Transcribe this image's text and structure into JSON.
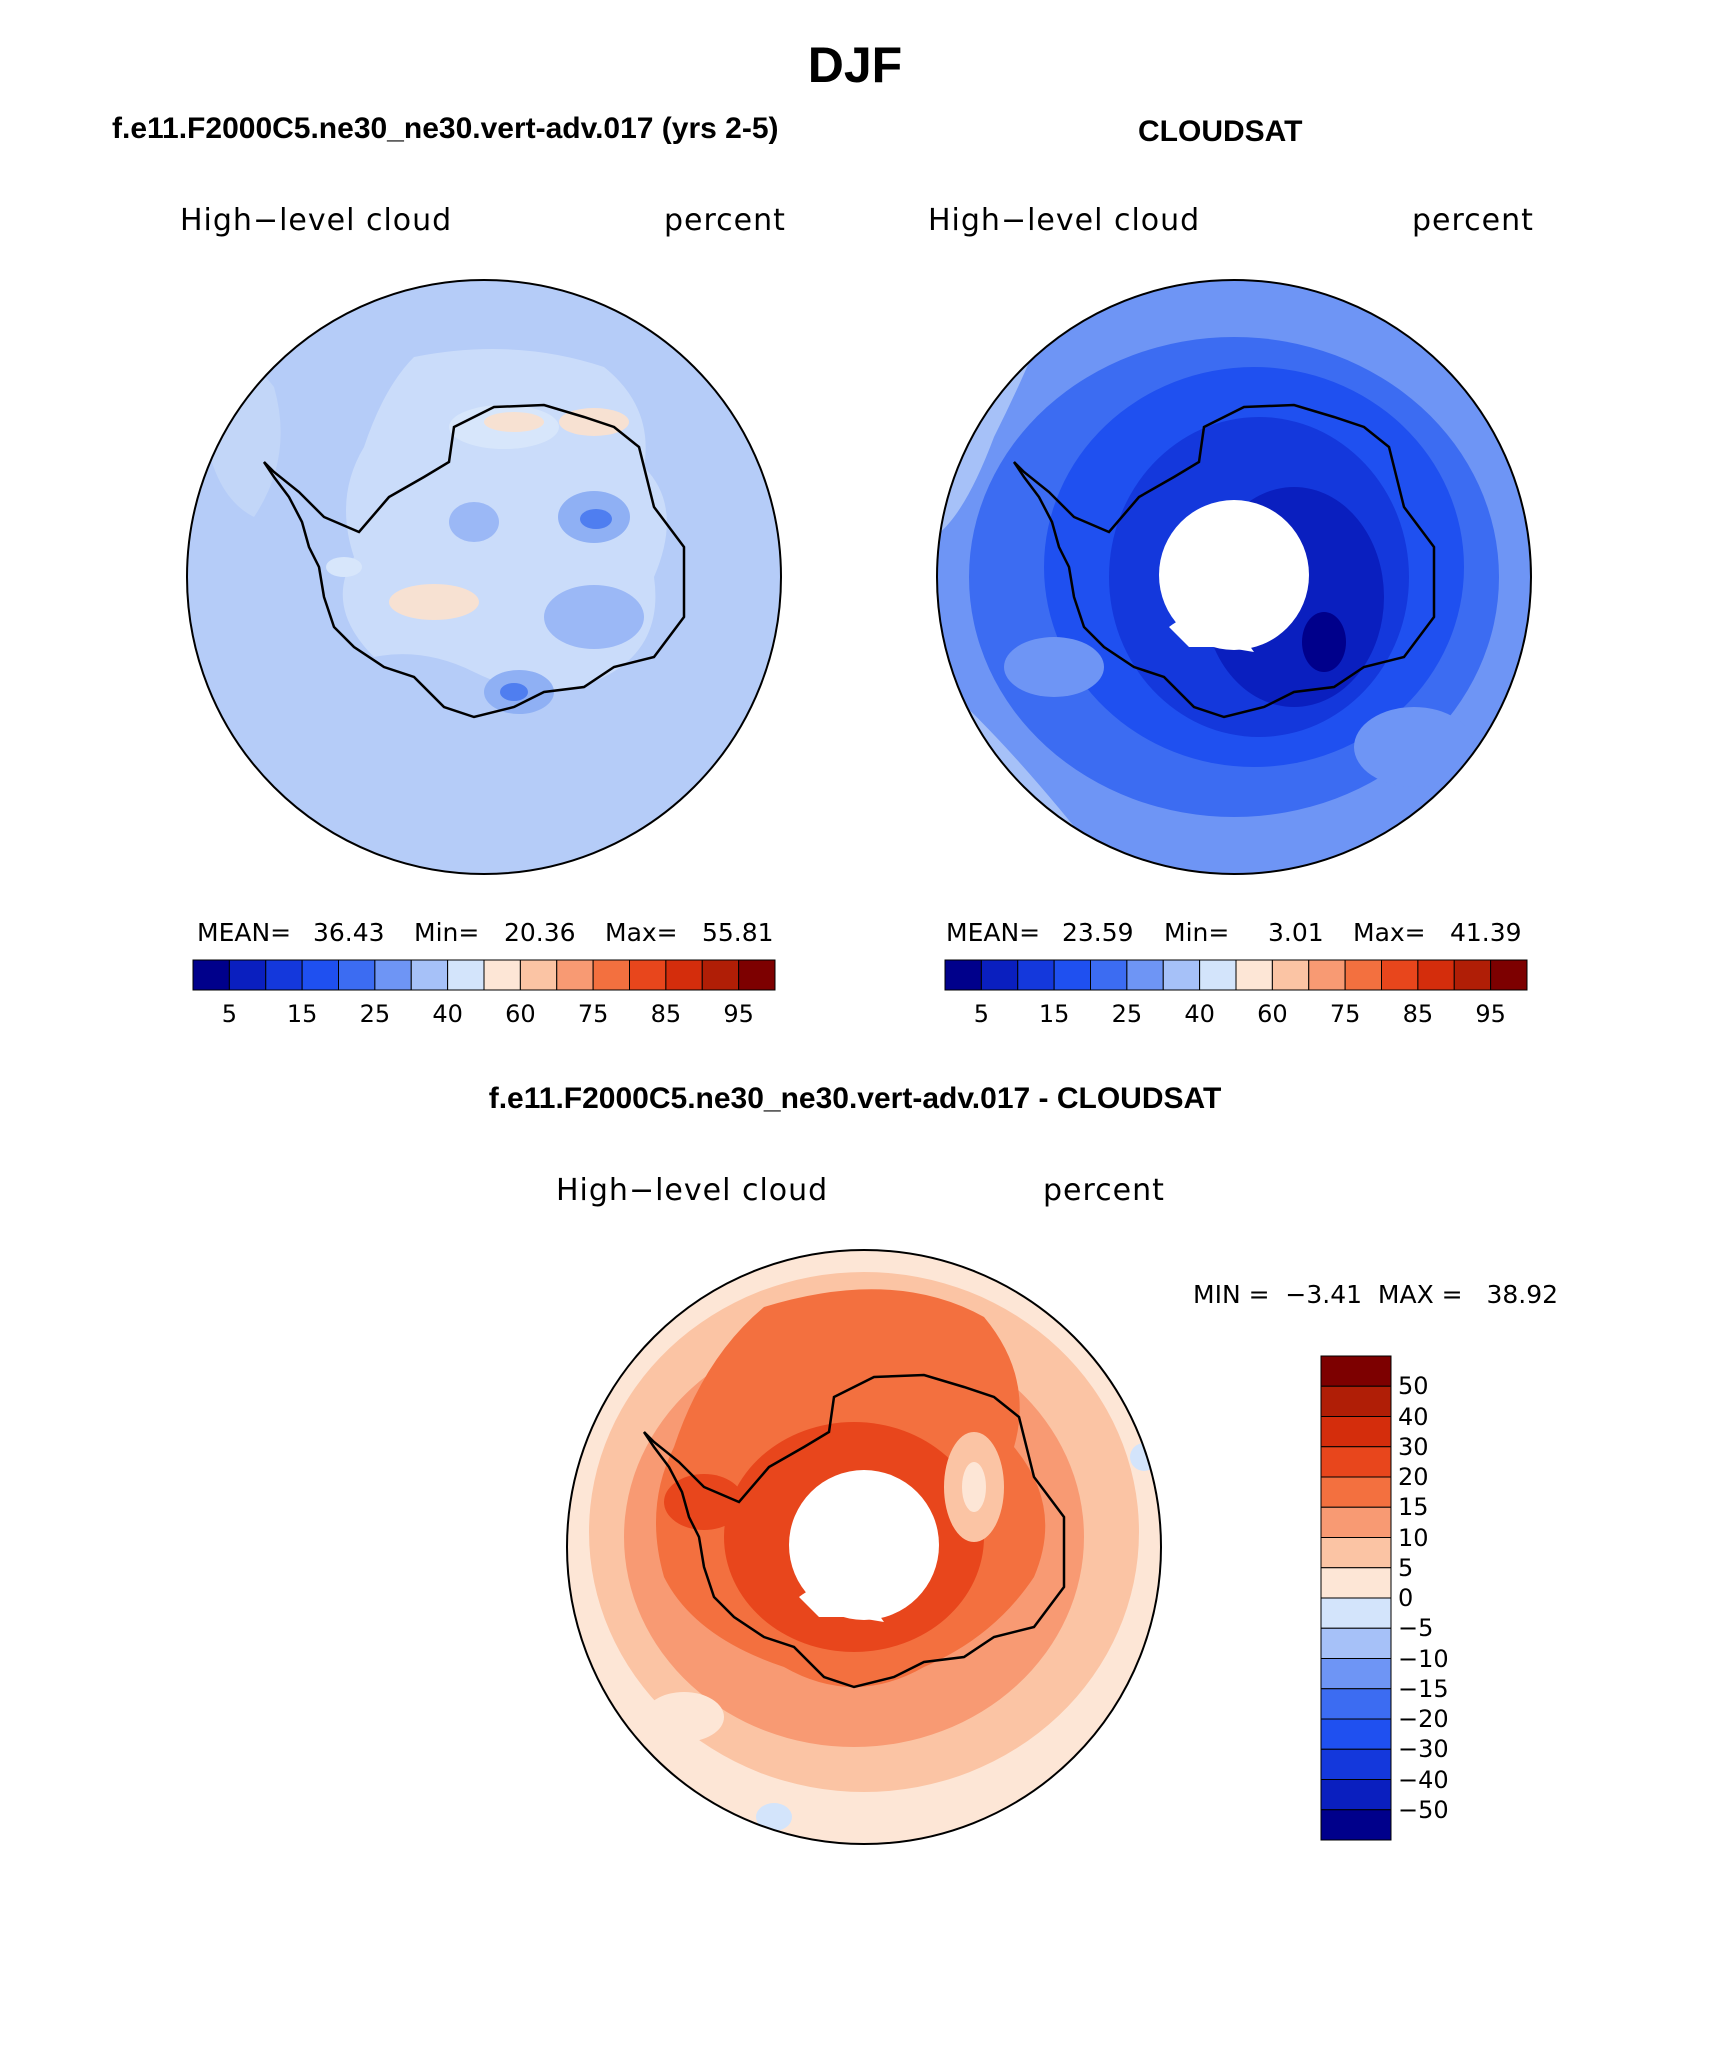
{
  "title": "DJF",
  "panels": [
    {
      "case": "f.e11.F2000C5.ne30_ne30.vert-adv.017 (yrs 2-5)",
      "variable": "High−level cloud",
      "units": "percent",
      "stats": {
        "mean_label": "MEAN=",
        "mean": "36.43",
        "min_label": "Min=",
        "min": "20.36",
        "max_label": "Max=",
        "max": "55.81"
      }
    },
    {
      "case": "CLOUDSAT",
      "variable": "High−level cloud",
      "units": "percent",
      "stats": {
        "mean_label": "MEAN=",
        "mean": "23.59",
        "min_label": "Min=",
        "min": "3.01",
        "max_label": "Max=",
        "max": "41.39"
      }
    }
  ],
  "diff": {
    "title": "f.e11.F2000C5.ne30_ne30.vert-adv.017 - CLOUDSAT",
    "variable": "High−level cloud",
    "units": "percent",
    "stats_text": "MIN =  −3.41  MAX =   38.92"
  },
  "colorbar_ticks": [
    "5",
    "15",
    "25",
    "40",
    "60",
    "75",
    "85",
    "95"
  ],
  "diff_colorbar_ticks": [
    "50",
    "40",
    "30",
    "20",
    "15",
    "10",
    "5",
    "0",
    "−5",
    "−10",
    "−15",
    "−20",
    "−30",
    "−40",
    "−50"
  ],
  "colors": {
    "scale": [
      "#00008b",
      "#0a1fbf",
      "#1438dc",
      "#1f50f0",
      "#3c6cf2",
      "#6e95f5",
      "#a6c1f8",
      "#d3e4fb",
      "#fde6d6",
      "#fbc4a4",
      "#f89a73",
      "#f3703f",
      "#e8461c",
      "#d42d0c",
      "#b01e06",
      "#7d0000"
    ],
    "diff_scale": [
      "#7d0000",
      "#b01e06",
      "#d42d0c",
      "#e8461c",
      "#f3703f",
      "#f89a73",
      "#fbc4a4",
      "#fde6d6",
      "#d3e4fb",
      "#a6c1f8",
      "#6e95f5",
      "#3c6cf2",
      "#1f50f0",
      "#1438dc",
      "#0a1fbf",
      "#00008b"
    ]
  }
}
